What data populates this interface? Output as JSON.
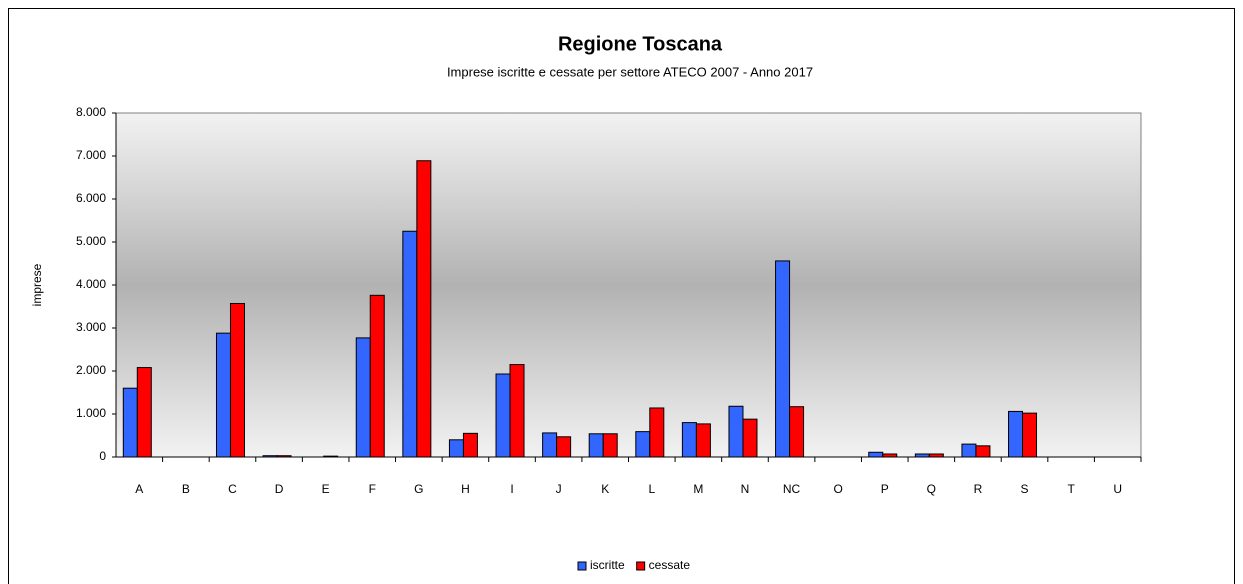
{
  "chart_data": {
    "type": "bar",
    "title": "Regione Toscana",
    "subtitle": "Imprese iscritte e cessate  per settore ATECO 2007 - Anno 2017",
    "y_label": "imprese",
    "categories": [
      "A",
      "B",
      "C",
      "D",
      "E",
      "F",
      "G",
      "H",
      "I",
      "J",
      "K",
      "L",
      "M",
      "N",
      "NC",
      "O",
      "P",
      "Q",
      "R",
      "S",
      "T",
      "U"
    ],
    "series": [
      {
        "name": "iscritte",
        "color": "#3366ff",
        "values": [
          1600,
          0,
          2880,
          30,
          0,
          2770,
          5250,
          400,
          1930,
          560,
          540,
          590,
          800,
          1180,
          4560,
          0,
          110,
          70,
          300,
          1060,
          0,
          0
        ]
      },
      {
        "name": "cessate",
        "color": "#ff0000",
        "values": [
          2080,
          0,
          3570,
          30,
          20,
          3760,
          6890,
          550,
          2150,
          470,
          540,
          1140,
          770,
          880,
          1170,
          0,
          70,
          70,
          260,
          1020,
          0,
          0
        ]
      }
    ],
    "ylim": [
      0,
      8000
    ],
    "yticks": [
      0,
      {
        "value": 1000,
        "label": "1.000"
      },
      {
        "value": 2000,
        "label": "2.000"
      },
      {
        "value": 3000,
        "label": "3.000"
      },
      {
        "value": 4000,
        "label": "4.000"
      },
      {
        "value": 5000,
        "label": "5.000"
      },
      {
        "value": 6000,
        "label": "6.000"
      },
      {
        "value": 7000,
        "label": "7.000"
      },
      {
        "value": 8000,
        "label": "8.000"
      }
    ],
    "legend": "bottom"
  }
}
